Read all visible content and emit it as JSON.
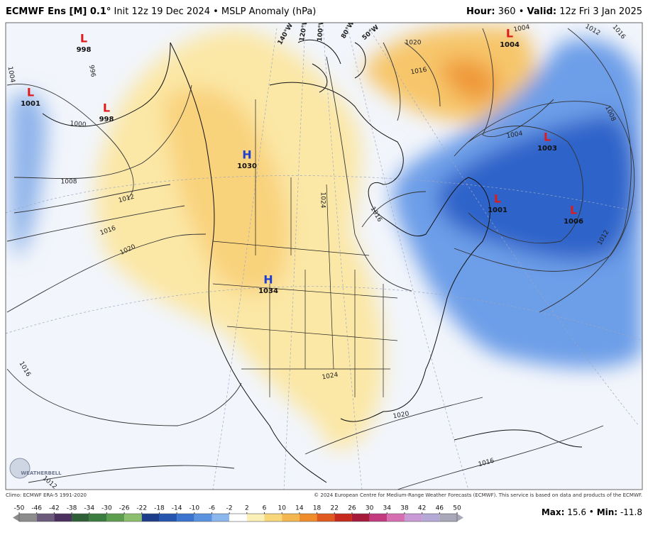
{
  "header": {
    "model": "ECMWF Ens [M] 0.1°",
    "init": "Init 12z 19 Dec 2024 • MSLP Anomaly (hPa)",
    "hour_label": "Hour:",
    "hour": "360 •",
    "valid_label": "Valid:",
    "valid": "12z Fri 3 Jan 2025"
  },
  "map": {
    "pressure_centers": [
      {
        "kind": "L",
        "value": 998
      },
      {
        "kind": "L",
        "value": 1001
      },
      {
        "kind": "L",
        "value": 998
      },
      {
        "kind": "H",
        "value": 1030
      },
      {
        "kind": "H",
        "value": 1034
      },
      {
        "kind": "L",
        "value": 1004
      },
      {
        "kind": "L",
        "value": 1003
      },
      {
        "kind": "L",
        "value": 1001
      },
      {
        "kind": "L",
        "value": 1006
      }
    ],
    "contour_labels": [
      1004,
      1000,
      1008,
      1012,
      1016,
      1020,
      1016,
      1012,
      1020,
      1016,
      1024,
      1024,
      1016,
      1004,
      1008,
      1012,
      1012,
      1016,
      1016,
      1020,
      1004,
      996
    ],
    "longitude_labels": [
      "140°W",
      "120°W",
      "100°W",
      "80°W",
      "50°W"
    ]
  },
  "footer": {
    "climo": "Climo: ECMWF ERA-5 1991-2020",
    "copyright": "© 2024 European Centre for Medium-Range Weather Forecasts (ECMWF). This service is based on data and products of the ECMWF.",
    "logo": "WEATHERBELL"
  },
  "colorbar": {
    "ticks": [
      -50,
      -46,
      -42,
      -38,
      -34,
      -30,
      -26,
      -22,
      -18,
      -14,
      -10,
      -6,
      -2,
      2,
      6,
      10,
      14,
      18,
      22,
      26,
      30,
      34,
      38,
      42,
      46,
      50
    ],
    "colors": [
      "#8c8c8c",
      "#6b5a7a",
      "#4b2f5e",
      "#2f5f36",
      "#3b7d3e",
      "#5c9e4e",
      "#8cbf6d",
      "#1d3d8a",
      "#2655b0",
      "#3b74cf",
      "#5b93e0",
      "#8cb6ee",
      "#ffffff",
      "#fbf0b8",
      "#f7d77a",
      "#f4b64e",
      "#ef8c2c",
      "#e05a20",
      "#c52a1c",
      "#a51a3a",
      "#c43a7e",
      "#d66fb2",
      "#c99ad6",
      "#b5a9d6",
      "#a8a8b8"
    ],
    "max_label": "Max:",
    "max": 15.6,
    "min_label": "Min:",
    "min": -11.8
  }
}
